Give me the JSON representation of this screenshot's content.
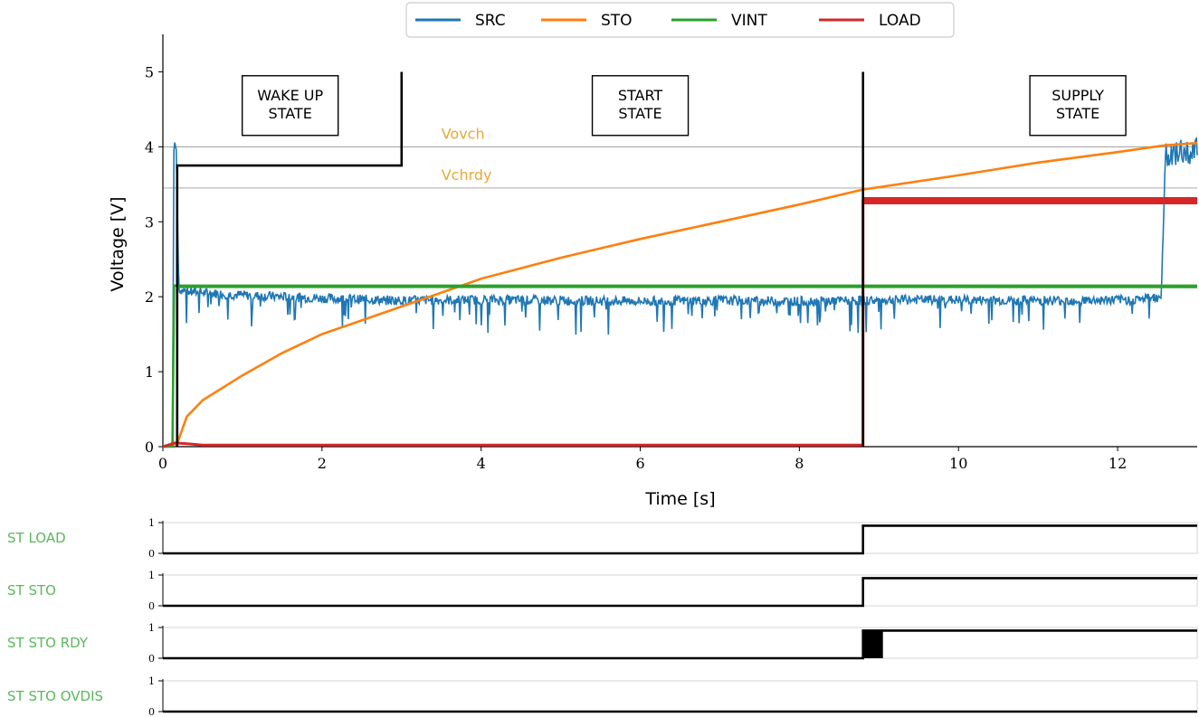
{
  "chart_data": {
    "type": "line",
    "xlabel": "Time [s]",
    "ylabel": "Voltage [V]",
    "xlim": [
      0,
      13
    ],
    "ylim": [
      0,
      5.5
    ],
    "x_ticks": [
      "0",
      "2",
      "4",
      "6",
      "8",
      "10",
      "12"
    ],
    "y_ticks": [
      "0",
      "1",
      "2",
      "3",
      "4",
      "5"
    ],
    "grid": false,
    "legend_position": "top-center",
    "series": [
      {
        "name": "SRC",
        "color": "#1f77b4",
        "style": "noisy",
        "x": [
          0,
          0.12,
          0.14,
          0.17,
          0.2,
          0.3,
          1.0,
          2.0,
          3.0,
          4.0,
          5.0,
          6.0,
          7.0,
          8.0,
          8.8,
          9.5,
          10.5,
          11.5,
          12.2,
          12.55,
          12.6,
          13.0
        ],
        "y": [
          0,
          0,
          4.1,
          3.95,
          2.1,
          2.07,
          2.02,
          1.98,
          1.95,
          1.96,
          1.95,
          1.94,
          1.95,
          1.94,
          1.95,
          1.96,
          1.95,
          1.95,
          1.96,
          2.0,
          3.9,
          3.95
        ],
        "noise": 0.08
      },
      {
        "name": "STO",
        "color": "#ff7f0e",
        "style": "line",
        "x": [
          0,
          0.18,
          0.3,
          0.5,
          1.0,
          1.5,
          2.0,
          3.0,
          4.0,
          5.0,
          6.0,
          7.0,
          8.0,
          8.8,
          10.0,
          11.0,
          12.0,
          12.6,
          13.0
        ],
        "y": [
          0,
          0.04,
          0.4,
          0.62,
          0.95,
          1.25,
          1.5,
          1.87,
          2.24,
          2.52,
          2.77,
          3.0,
          3.23,
          3.43,
          3.62,
          3.79,
          3.93,
          4.02,
          4.05
        ]
      },
      {
        "name": "VINT",
        "color": "#2ca02c",
        "style": "line",
        "x": [
          0,
          0.12,
          0.14,
          0.2,
          13.0
        ],
        "y": [
          0,
          0,
          2.15,
          2.14,
          2.13
        ]
      },
      {
        "name": "LOAD",
        "color": "#d62728",
        "style": "line",
        "x": [
          0,
          0.15,
          0.3,
          0.5,
          8.8,
          8.8,
          13.0
        ],
        "y": [
          0,
          0.05,
          0.04,
          0.02,
          0.02,
          3.28,
          3.28
        ]
      }
    ],
    "state_line": {
      "color": "#000000",
      "x": [
        0.18,
        0.18,
        3.0,
        3.0
      ],
      "y": [
        0,
        3.75,
        3.75,
        5.0
      ],
      "divider_x": 8.8,
      "divider_y": [
        0,
        5.0
      ]
    },
    "thresholds": [
      {
        "label": "Vovch",
        "value": 4.0,
        "label_x": 3.5,
        "color": "#e8a838",
        "line_color": "#9e9e9e"
      },
      {
        "label": "Vchrdy",
        "value": 3.45,
        "label_x": 3.5,
        "color": "#e8a838",
        "line_color": "#9e9e9e"
      }
    ],
    "annotations": [
      {
        "lines": [
          "WAKE UP",
          "STATE"
        ],
        "x": 1.6,
        "y": 4.55
      },
      {
        "lines": [
          "START",
          "STATE"
        ],
        "x": 6.0,
        "y": 4.55
      },
      {
        "lines": [
          "SUPPLY",
          "STATE"
        ],
        "x": 11.5,
        "y": 4.55
      }
    ],
    "digital_signals": [
      {
        "name": "ST_LOAD",
        "display": "ST LOAD",
        "y_ticks": [
          "0",
          "1"
        ],
        "x": [
          0,
          8.8,
          8.8,
          13
        ],
        "y": [
          0,
          0,
          0.9,
          0.9
        ]
      },
      {
        "name": "ST_STO",
        "display": "ST STO",
        "y_ticks": [
          "0",
          "1"
        ],
        "x": [
          0,
          8.8,
          8.8,
          13
        ],
        "y": [
          0,
          0,
          0.9,
          0.9
        ]
      },
      {
        "name": "ST_STO_RDY",
        "display": "ST STO RDY",
        "y_ticks": [
          "0",
          "1"
        ],
        "x": [
          0,
          8.8,
          8.8,
          13
        ],
        "y": [
          0,
          0,
          0.9,
          0.9
        ],
        "busy": [
          8.8,
          9.05
        ]
      },
      {
        "name": "ST_STO_OVDIS",
        "display": "ST STO OVDIS",
        "y_ticks": [
          "0",
          "1"
        ],
        "x": [
          0,
          13
        ],
        "y": [
          0,
          0
        ]
      }
    ],
    "digital_label_color": "#5cb85c"
  }
}
